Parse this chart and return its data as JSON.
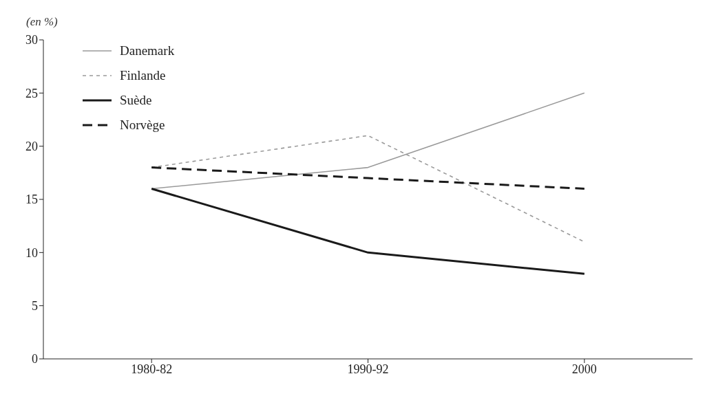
{
  "chart_data": {
    "type": "line",
    "ylabel": "(en %)",
    "categories": [
      "1980-82",
      "1990-92",
      "2000"
    ],
    "series": [
      {
        "name": "Danemark",
        "color": "#9a9a9a",
        "line_style": "solid",
        "values": [
          16,
          18,
          25
        ]
      },
      {
        "name": "Finlande",
        "color": "#9a9a9a",
        "line_style": "dotted",
        "values": [
          18,
          21,
          11
        ]
      },
      {
        "name": "Suède",
        "color": "#1a1a1a",
        "line_style": "solid",
        "values": [
          16,
          10,
          8
        ]
      },
      {
        "name": "Norvège",
        "color": "#1a1a1a",
        "line_style": "dashed",
        "values": [
          18,
          17,
          16
        ]
      }
    ],
    "ylim": [
      0,
      30
    ],
    "yticks": [
      0,
      5,
      10,
      15,
      20,
      25,
      30
    ],
    "grid": false,
    "legend": "top left",
    "marker": "none"
  }
}
